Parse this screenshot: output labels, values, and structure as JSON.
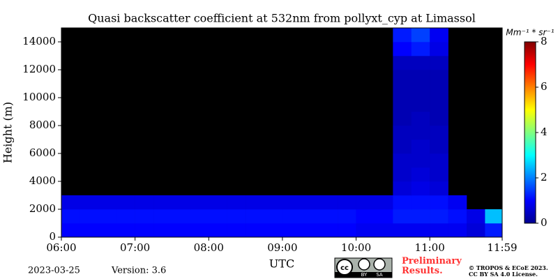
{
  "chart_data": {
    "type": "heatmap",
    "title": "Quasi backscatter coefficient at 532nm from pollyxt_cyp at Limassol",
    "x_label": "UTC",
    "y_label": "Height (m)",
    "colorbar_label": "Mm⁻¹ * sr⁻¹",
    "x_edges": [
      6,
      6.25,
      6.5,
      6.75,
      7,
      7.25,
      7.5,
      7.75,
      8,
      8.25,
      8.5,
      8.75,
      9,
      9.25,
      9.5,
      9.75,
      10,
      10.25,
      10.5,
      10.75,
      11,
      11.25,
      11.5,
      11.75,
      11.983
    ],
    "y_edges": [
      0,
      1000,
      2000,
      3000,
      4000,
      5000,
      6000,
      7000,
      8000,
      9000,
      10000,
      11000,
      12000,
      13000,
      14000,
      15000
    ],
    "values": [
      [
        1,
        1,
        1,
        1,
        1,
        1,
        1,
        1,
        1,
        1,
        1,
        1,
        1,
        1,
        1,
        1,
        0.9,
        0.9,
        0.9,
        0.9,
        0.9,
        0.9,
        0.7,
        1.2
      ],
      [
        1.1,
        1.1,
        1.1,
        1.1,
        1.1,
        1.1,
        1.1,
        1.1,
        1.1,
        1.1,
        1.1,
        1.1,
        1.1,
        1.1,
        1.1,
        1.1,
        1,
        1,
        1.2,
        1.2,
        1.2,
        1.1,
        0.8,
        2.5
      ],
      [
        0.8,
        0.8,
        0.8,
        0.8,
        0.8,
        0.8,
        0.8,
        0.8,
        0.8,
        0.8,
        0.8,
        0.8,
        0.8,
        0.8,
        0.8,
        0.8,
        0.8,
        0.8,
        1.1,
        1.1,
        1.1,
        0.9,
        null,
        null
      ],
      [
        null,
        null,
        null,
        null,
        null,
        null,
        null,
        null,
        null,
        null,
        null,
        null,
        null,
        null,
        null,
        null,
        null,
        null,
        0.7,
        0.8,
        0.7,
        null,
        null,
        null
      ],
      [
        null,
        null,
        null,
        null,
        null,
        null,
        null,
        null,
        null,
        null,
        null,
        null,
        null,
        null,
        null,
        null,
        null,
        null,
        0.6,
        0.7,
        0.6,
        null,
        null,
        null
      ],
      [
        null,
        null,
        null,
        null,
        null,
        null,
        null,
        null,
        null,
        null,
        null,
        null,
        null,
        null,
        null,
        null,
        null,
        null,
        0.6,
        0.6,
        0.6,
        null,
        null,
        null
      ],
      [
        null,
        null,
        null,
        null,
        null,
        null,
        null,
        null,
        null,
        null,
        null,
        null,
        null,
        null,
        null,
        null,
        null,
        null,
        0.5,
        0.6,
        0.5,
        null,
        null,
        null
      ],
      [
        null,
        null,
        null,
        null,
        null,
        null,
        null,
        null,
        null,
        null,
        null,
        null,
        null,
        null,
        null,
        null,
        null,
        null,
        0.5,
        0.5,
        0.5,
        null,
        null,
        null
      ],
      [
        null,
        null,
        null,
        null,
        null,
        null,
        null,
        null,
        null,
        null,
        null,
        null,
        null,
        null,
        null,
        null,
        null,
        null,
        0.4,
        0.5,
        0.4,
        null,
        null,
        null
      ],
      [
        null,
        null,
        null,
        null,
        null,
        null,
        null,
        null,
        null,
        null,
        null,
        null,
        null,
        null,
        null,
        null,
        null,
        null,
        0.4,
        0.4,
        0.4,
        null,
        null,
        null
      ],
      [
        null,
        null,
        null,
        null,
        null,
        null,
        null,
        null,
        null,
        null,
        null,
        null,
        null,
        null,
        null,
        null,
        null,
        null,
        0.4,
        0.4,
        0.4,
        null,
        null,
        null
      ],
      [
        null,
        null,
        null,
        null,
        null,
        null,
        null,
        null,
        null,
        null,
        null,
        null,
        null,
        null,
        null,
        null,
        null,
        null,
        0.4,
        0.4,
        0.4,
        null,
        null,
        null
      ],
      [
        null,
        null,
        null,
        null,
        null,
        null,
        null,
        null,
        null,
        null,
        null,
        null,
        null,
        null,
        null,
        null,
        null,
        null,
        0.5,
        0.5,
        0.5,
        null,
        null,
        null
      ],
      [
        null,
        null,
        null,
        null,
        null,
        null,
        null,
        null,
        null,
        null,
        null,
        null,
        null,
        null,
        null,
        null,
        null,
        null,
        1,
        1.2,
        0.8,
        null,
        null,
        null
      ],
      [
        null,
        null,
        null,
        null,
        null,
        null,
        null,
        null,
        null,
        null,
        null,
        null,
        null,
        null,
        null,
        null,
        null,
        null,
        1.2,
        1.5,
        0.9,
        null,
        null,
        null
      ]
    ],
    "xlim": [
      6,
      11.983
    ],
    "ylim": [
      0,
      15000
    ],
    "xticks": [
      {
        "value": 6,
        "label": "06:00"
      },
      {
        "value": 7,
        "label": "07:00"
      },
      {
        "value": 8,
        "label": "08:00"
      },
      {
        "value": 9,
        "label": "09:00"
      },
      {
        "value": 10,
        "label": "10:00"
      },
      {
        "value": 11,
        "label": "11:00"
      },
      {
        "value": 11.983,
        "label": "11:59"
      }
    ],
    "yticks": [
      0,
      2000,
      4000,
      6000,
      8000,
      10000,
      12000,
      14000
    ],
    "clim": [
      0,
      8
    ],
    "cticks": [
      0,
      2,
      4,
      6,
      8
    ]
  },
  "footer": {
    "date": "2023-03-25",
    "version": "Version: 3.6",
    "badge": [
      "BY",
      "SA"
    ],
    "notice": "Preliminary Results.",
    "copyright": [
      "© TROPOS & ECoE 2023.",
      "CC BY SA 4.0 License."
    ]
  }
}
